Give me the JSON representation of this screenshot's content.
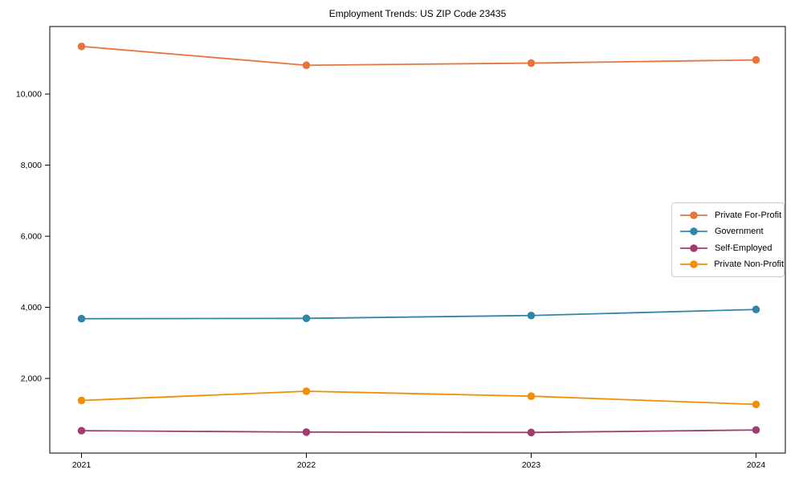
{
  "figure": {
    "background": "#ffffff",
    "axes_color": "#000000",
    "legend_border_color": "#cccccc"
  },
  "chart_data": {
    "type": "line",
    "title": "Employment Trends: US ZIP Code 23435",
    "xlabel": "",
    "ylabel": "",
    "categories": [
      "2021",
      "2022",
      "2023",
      "2024"
    ],
    "series": [
      {
        "name": "Private For-Profit",
        "color": "#e8743b",
        "values": [
          11340,
          10810,
          10870,
          10960
        ]
      },
      {
        "name": "Government",
        "color": "#2e86ab",
        "values": [
          3680,
          3690,
          3770,
          3940
        ]
      },
      {
        "name": "Self-Employed",
        "color": "#a23b72",
        "values": [
          530,
          490,
          480,
          550
        ]
      },
      {
        "name": "Private Non-Profit",
        "color": "#f18f01",
        "values": [
          1380,
          1640,
          1500,
          1270
        ]
      }
    ],
    "ylim": [
      -100,
      11900
    ],
    "yticks": [
      2000,
      4000,
      6000,
      8000,
      10000
    ],
    "ytick_labels": [
      "2,000",
      "4,000",
      "6,000",
      "8,000",
      "10,000"
    ],
    "grid": false,
    "legend_position": "center-right",
    "marker": "circle"
  }
}
